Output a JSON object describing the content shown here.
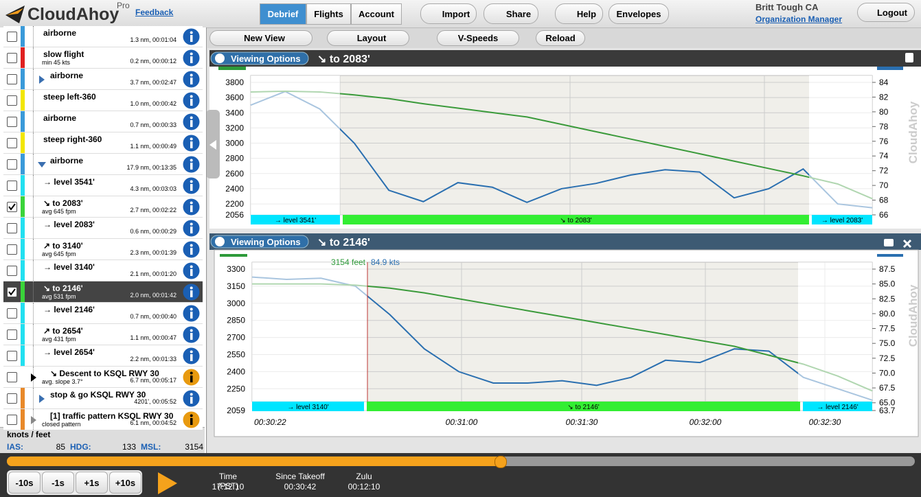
{
  "header": {
    "logo": "CloudAhoy",
    "pro": "Pro",
    "feedback": "Feedback",
    "tabs": [
      "Debrief",
      "Flights",
      "Account"
    ],
    "buttons": [
      "Import",
      "Share",
      "Help",
      "Envelopes"
    ],
    "user": "Britt Tough CA",
    "org": "Organization Manager",
    "logout": "Logout"
  },
  "toolbar": [
    "New View",
    "Layout",
    "V-Speeds",
    "Reload"
  ],
  "items": [
    {
      "name": "airborne",
      "stats": "1.3 nm, 00:01:04",
      "color": "#3a9ad9",
      "info": "#1a5fb4"
    },
    {
      "name": "slow flight",
      "sub": "min 45 kts",
      "stats": "0.2 nm, 00:00:12",
      "color": "#e02020",
      "info": "#1a5fb4"
    },
    {
      "name": "airborne",
      "stats": "3.7 nm, 00:02:47",
      "color": "#3a9ad9",
      "marker": "right",
      "info": "#1a5fb4"
    },
    {
      "name": "steep left-360",
      "stats": "1.0 nm, 00:00:42",
      "color": "#f2e600",
      "info": "#1a5fb4"
    },
    {
      "name": "airborne",
      "stats": "0.7 nm, 00:00:33",
      "color": "#3a9ad9",
      "info": "#1a5fb4"
    },
    {
      "name": "steep right-360",
      "stats": "1.1 nm, 00:00:49",
      "color": "#f2e600",
      "info": "#1a5fb4"
    },
    {
      "name": "airborne",
      "stats": "17.9 nm, 00:13:35",
      "color": "#3a9ad9",
      "marker": "down",
      "info": "#1a5fb4"
    },
    {
      "name": "→ level 3541'",
      "stats": "4.3 nm, 00:03:03",
      "color": "#22e0f0",
      "info": "#1a5fb4"
    },
    {
      "name": "↘ to 2083'",
      "sub": "avg 645 fpm",
      "stats": "2.7 nm, 00:02:22",
      "color": "#3ad43a",
      "checked": true,
      "info": "#1a5fb4"
    },
    {
      "name": "→ level 2083'",
      "stats": "0.6 nm, 00:00:29",
      "color": "#22e0f0",
      "info": "#1a5fb4"
    },
    {
      "name": "↗ to 3140'",
      "sub": "avg 645 fpm",
      "stats": "2.3 nm, 00:01:39",
      "color": "#22e0f0",
      "info": "#1a5fb4"
    },
    {
      "name": "→ level 3140'",
      "stats": "2.1 nm, 00:01:20",
      "color": "#22e0f0",
      "info": "#1a5fb4"
    },
    {
      "name": "↘ to 2146'",
      "sub": "avg 531 fpm",
      "stats": "2.0 nm, 00:01:42",
      "color": "#3ad43a",
      "checked": true,
      "selected": true,
      "info": "#1a5fb4"
    },
    {
      "name": "→ level 2146'",
      "stats": "0.7 nm, 00:00:40",
      "color": "#22e0f0",
      "info": "#1a5fb4"
    },
    {
      "name": "↗ to 2654'",
      "sub": "avg 431 fpm",
      "stats": "1.1 nm, 00:00:47",
      "color": "#22e0f0",
      "info": "#1a5fb4"
    },
    {
      "name": "→ level 2654'",
      "stats": "2.2 nm, 00:01:33",
      "color": "#22e0f0",
      "info": "#1a5fb4"
    },
    {
      "name": "↘ Descent to KSQL RWY 30",
      "sub": "avg. slope 3.7°",
      "stats": "6.7 nm, 00:05:17",
      "color": "#ffffff",
      "marker": "black",
      "info": "#e89a10"
    },
    {
      "name": "stop & go KSQL RWY 30",
      "stats": "4201', 00:05:52",
      "color": "#e8892a",
      "marker": "right",
      "info": "#1a5fb4"
    },
    {
      "name": "[1] traffic pattern KSQL RWY 30",
      "sub": "closed pattern",
      "stats": "6.1 nm, 00:04:52",
      "color": "#e8892a",
      "marker": "gray",
      "info": "#e89a10"
    }
  ],
  "status": {
    "units": "knots / feet",
    "ias_label": "IAS:",
    "ias": 85,
    "hdg_label": "HDG:",
    "hdg": 133,
    "msl_label": "MSL:",
    "msl": 3154
  },
  "charts": [
    {
      "options": "Viewing Options",
      "title": "↘ to 2083'",
      "watermark": "CloudAhoy",
      "ylim": [
        2056,
        3800
      ],
      "yticks": [
        2056,
        2200,
        2400,
        2600,
        2800,
        3000,
        3200,
        3400,
        3600,
        3800
      ],
      "y2lim": [
        66,
        84
      ],
      "y2ticks": [
        66,
        68,
        70,
        72,
        74,
        76,
        78,
        80,
        82,
        84
      ],
      "segments": [
        "→ level 3541'",
        "↘ to 2083'",
        "→ level 2083'"
      ],
      "series": [
        {
          "color": "#2a6fb0",
          "values": [
            3500,
            3680,
            3450,
            3000,
            2380,
            2230,
            2480,
            2420,
            2220,
            2400,
            2470,
            2580,
            2650,
            2620,
            2280,
            2400,
            2660,
            2200,
            2150
          ]
        },
        {
          "color": "#3a9a3a",
          "axis": "y2",
          "values": [
            82.7,
            82.8,
            82.7,
            82.3,
            81.8,
            81.1,
            80.5,
            79.9,
            79.3,
            78.3,
            77.3,
            76.3,
            75.3,
            74.3,
            73.3,
            72.3,
            71.3,
            70.2,
            68.2
          ]
        }
      ]
    },
    {
      "options": "Viewing Options",
      "title": "↘ to 2146'",
      "watermark": "CloudAhoy",
      "cursor_alt": "3154 feet",
      "cursor_speed": "84.9 kts",
      "ylim": [
        2059,
        3300
      ],
      "yticks": [
        2059,
        2250,
        2400,
        2550,
        2700,
        2850,
        3000,
        3150,
        3300
      ],
      "y2lim": [
        63.7,
        87.5
      ],
      "y2ticks": [
        63.7,
        65.0,
        67.5,
        70.0,
        72.5,
        75.0,
        77.5,
        80.0,
        82.5,
        85.0,
        87.5
      ],
      "xticks": [
        "00:30:22",
        "00:31:00",
        "00:31:30",
        "00:32:00",
        "00:32:30"
      ],
      "segments": [
        "→ level 3140'",
        "↘ to 2146'",
        "→ level 2146'"
      ],
      "series": [
        {
          "color": "#2a6fb0",
          "values": [
            3230,
            3210,
            3220,
            3150,
            2900,
            2600,
            2400,
            2300,
            2300,
            2320,
            2280,
            2350,
            2500,
            2480,
            2600,
            2580,
            2350,
            2250,
            2150
          ]
        },
        {
          "color": "#3a9a3a",
          "axis": "y2",
          "values": [
            85,
            85,
            85,
            84.8,
            84.3,
            83.5,
            82.5,
            81.5,
            80.5,
            79.5,
            78.5,
            77.5,
            76.5,
            75.5,
            74.5,
            73,
            71.5,
            69.5,
            67
          ]
        }
      ]
    }
  ],
  "controls": {
    "steps": [
      "-10s",
      "-1s",
      "+1s",
      "+10s"
    ],
    "clocks": [
      {
        "label": "Time (PST)",
        "value": "17:12:10"
      },
      {
        "label": "Since Takeoff",
        "value": "00:30:42"
      },
      {
        "label": "Zulu",
        "value": "00:12:10"
      }
    ]
  }
}
